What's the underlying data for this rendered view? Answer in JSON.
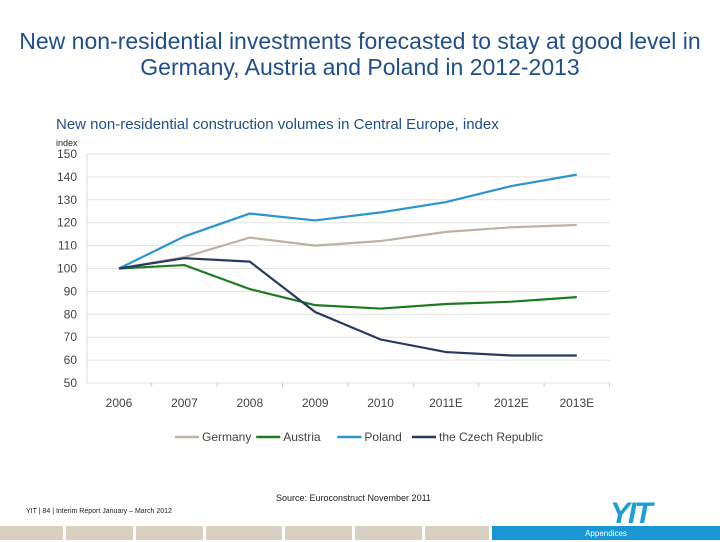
{
  "title": "New non-residential investments forecasted to stay at good level in Germany, Austria and Poland in 2012-2013",
  "footer": {
    "source": "Source: Euroconstruct November 2011",
    "left": "YIT  | 84 | Interim Report January – March 2012",
    "logo": "YIT",
    "active_tab": "Appendices"
  },
  "chart_data": {
    "type": "line",
    "title": "New non-residential construction volumes in Central Europe, index",
    "ylabel": "index",
    "ylim": [
      50,
      150
    ],
    "yticks": [
      150,
      140,
      130,
      120,
      110,
      100,
      90,
      80,
      70,
      60,
      50
    ],
    "grid": true,
    "legend": "bottom",
    "categories": [
      "2006",
      "2007",
      "2008",
      "2009",
      "2010",
      "2011E",
      "2012E",
      "2013E"
    ],
    "series": [
      {
        "name": "Germany",
        "color": "#bfb2a2",
        "values": [
          100,
          105,
          113.5,
          110,
          112,
          116,
          118,
          119
        ]
      },
      {
        "name": "Austria",
        "color": "#1e7a1e",
        "values": [
          100,
          101.5,
          91,
          84,
          82.5,
          84.5,
          85.5,
          87.5
        ]
      },
      {
        "name": "Poland",
        "color": "#2a95cf",
        "values": [
          100,
          114,
          124,
          121,
          124.5,
          129,
          136,
          141
        ]
      },
      {
        "name": "the Czech Republic",
        "color": "#253a5e",
        "values": [
          100,
          104.5,
          103,
          81,
          69,
          63.5,
          62,
          62
        ]
      }
    ]
  }
}
